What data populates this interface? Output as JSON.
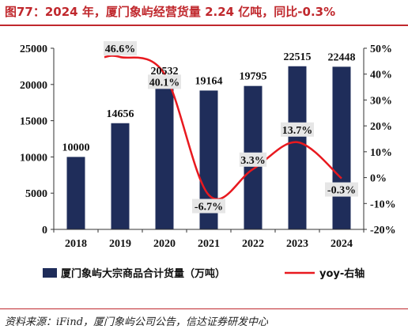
{
  "title": "图77：2024 年，厦门象屿经营货量 2.24 亿吨，同比-0.3%",
  "source": "资料来源：iFind，厦门象屿公司公告，信达证券研发中心",
  "colors": {
    "bar": "#1f2d5a",
    "line": "#e8191f",
    "title": "#c0282d",
    "label_bg": "#e6e6e6"
  },
  "chart_data": {
    "type": "bar",
    "categories": [
      "2018",
      "2019",
      "2020",
      "2021",
      "2022",
      "2023",
      "2024"
    ],
    "series": [
      {
        "name": "厦门象屿大宗商品合计货量（万吨）",
        "type": "bar",
        "axis": "left",
        "values": [
          10000,
          14656,
          20532,
          19164,
          19795,
          22515,
          22448
        ]
      },
      {
        "name": "yoy-右轴",
        "type": "line",
        "axis": "right",
        "values": [
          null,
          46.6,
          40.1,
          -6.7,
          3.3,
          13.7,
          -0.3
        ]
      }
    ],
    "bar_labels": [
      "10000",
      "14656",
      "20532",
      "19164",
      "19795",
      "22515",
      "22448"
    ],
    "line_labels": [
      "",
      "46.6%",
      "40.1%",
      "-6.7%",
      "3.3%",
      "13.7%",
      "-0.3%"
    ],
    "y_left": {
      "ylim": [
        0,
        25000
      ],
      "ticks": [
        "0",
        "5000",
        "10000",
        "15000",
        "20000",
        "25000"
      ]
    },
    "y_right": {
      "ylim": [
        -20,
        50
      ],
      "ticks": [
        "-20%",
        "-10%",
        "0%",
        "10%",
        "20%",
        "30%",
        "40%",
        "50%"
      ]
    },
    "legend": {
      "position": "bottom",
      "bar_label": "厦门象屿大宗商品合计货量（万吨）",
      "line_label": "yoy-右轴"
    },
    "grid": false
  }
}
